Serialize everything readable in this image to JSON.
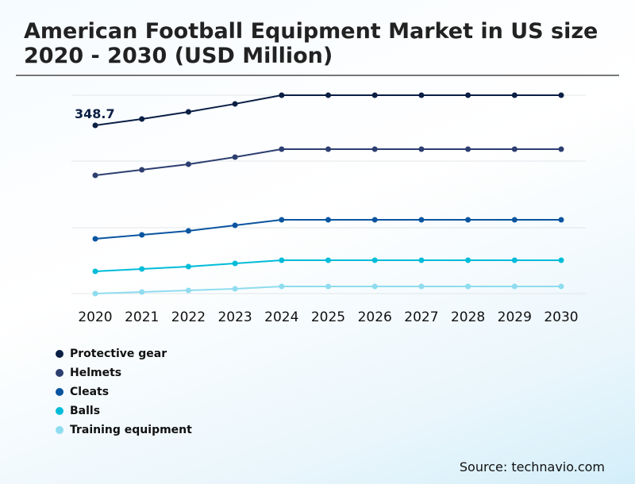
{
  "title": "American Football Equipment Market in US size 2020 - 2030 (USD Million)",
  "source": "Source: technavio.com",
  "chart_data": {
    "type": "line",
    "title": "American Football Equipment Market in US size 2020 - 2030 (USD Million)",
    "categories": [
      "2020",
      "2021",
      "2022",
      "2023",
      "2024",
      "2025",
      "2026",
      "2027",
      "2028",
      "2029",
      "2030"
    ],
    "grid": true,
    "legend_placement": "bottom-left",
    "annotation": "348.7",
    "series": [
      {
        "name": "Protective gear",
        "color": "#0a1f44",
        "values": [
          348.7,
          361.9,
          376.7,
          393.2,
          411.2,
          411.2,
          411.2,
          411.2,
          411.2,
          411.2,
          411.2
        ]
      },
      {
        "name": "Helmets",
        "color": "#2d3e70",
        "values": [
          245.1,
          256.6,
          268.1,
          282.9,
          299.3,
          299.3,
          299.3,
          299.3,
          299.3,
          299.3,
          299.3
        ]
      },
      {
        "name": "Cleats",
        "color": "#0a55a0",
        "values": [
          113.5,
          121.7,
          129.9,
          141.5,
          152.9,
          152.9,
          152.9,
          152.9,
          152.9,
          152.9,
          152.9
        ]
      },
      {
        "name": "Balls",
        "color": "#00bcd9",
        "values": [
          46.1,
          51.0,
          55.9,
          62.5,
          69.1,
          69.1,
          69.1,
          69.1,
          69.1,
          69.1,
          69.1
        ]
      },
      {
        "name": "Training equipment",
        "color": "#8fdcef",
        "values": [
          0,
          3.3,
          6.6,
          9.9,
          14.8,
          14.8,
          14.8,
          14.8,
          14.8,
          14.8,
          14.8
        ]
      }
    ]
  }
}
